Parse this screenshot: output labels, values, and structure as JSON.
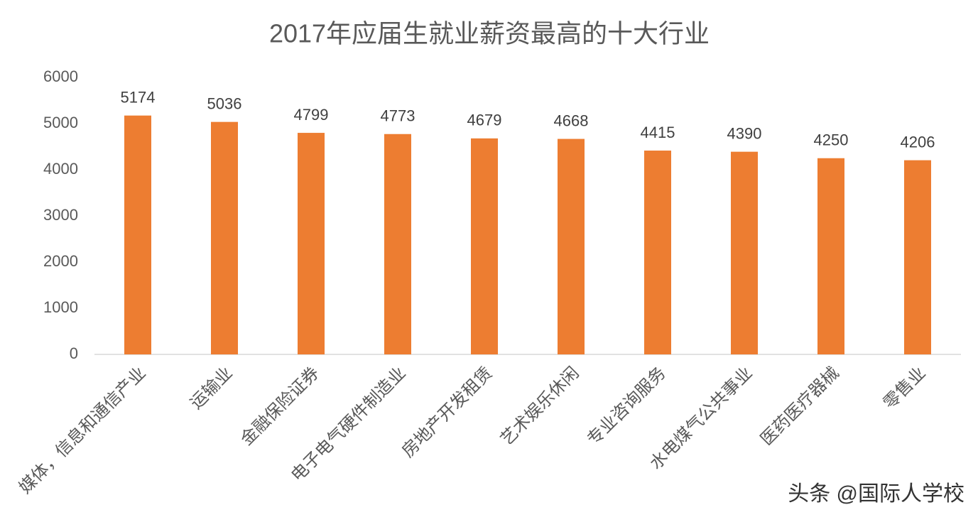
{
  "chart_data": {
    "type": "bar",
    "title": "2017年应届生就业薪资最高的十大行业",
    "categories": [
      "媒体，信息和通信产业",
      "运输业",
      "金融保险证券",
      "电子电气硬件制造业",
      "房地产开发租赁",
      "艺术娱乐休闲",
      "专业咨询服务",
      "水电煤气公共事业",
      "医药医疗器械",
      "零售业"
    ],
    "values": [
      5174,
      5036,
      4799,
      4773,
      4679,
      4668,
      4415,
      4390,
      4250,
      4206
    ],
    "color": "#ed7d31",
    "ylim": [
      0,
      6000
    ],
    "yticks": [
      0,
      1000,
      2000,
      3000,
      4000,
      5000,
      6000
    ],
    "grid": false,
    "watermark": "头条 @国际人学校"
  }
}
